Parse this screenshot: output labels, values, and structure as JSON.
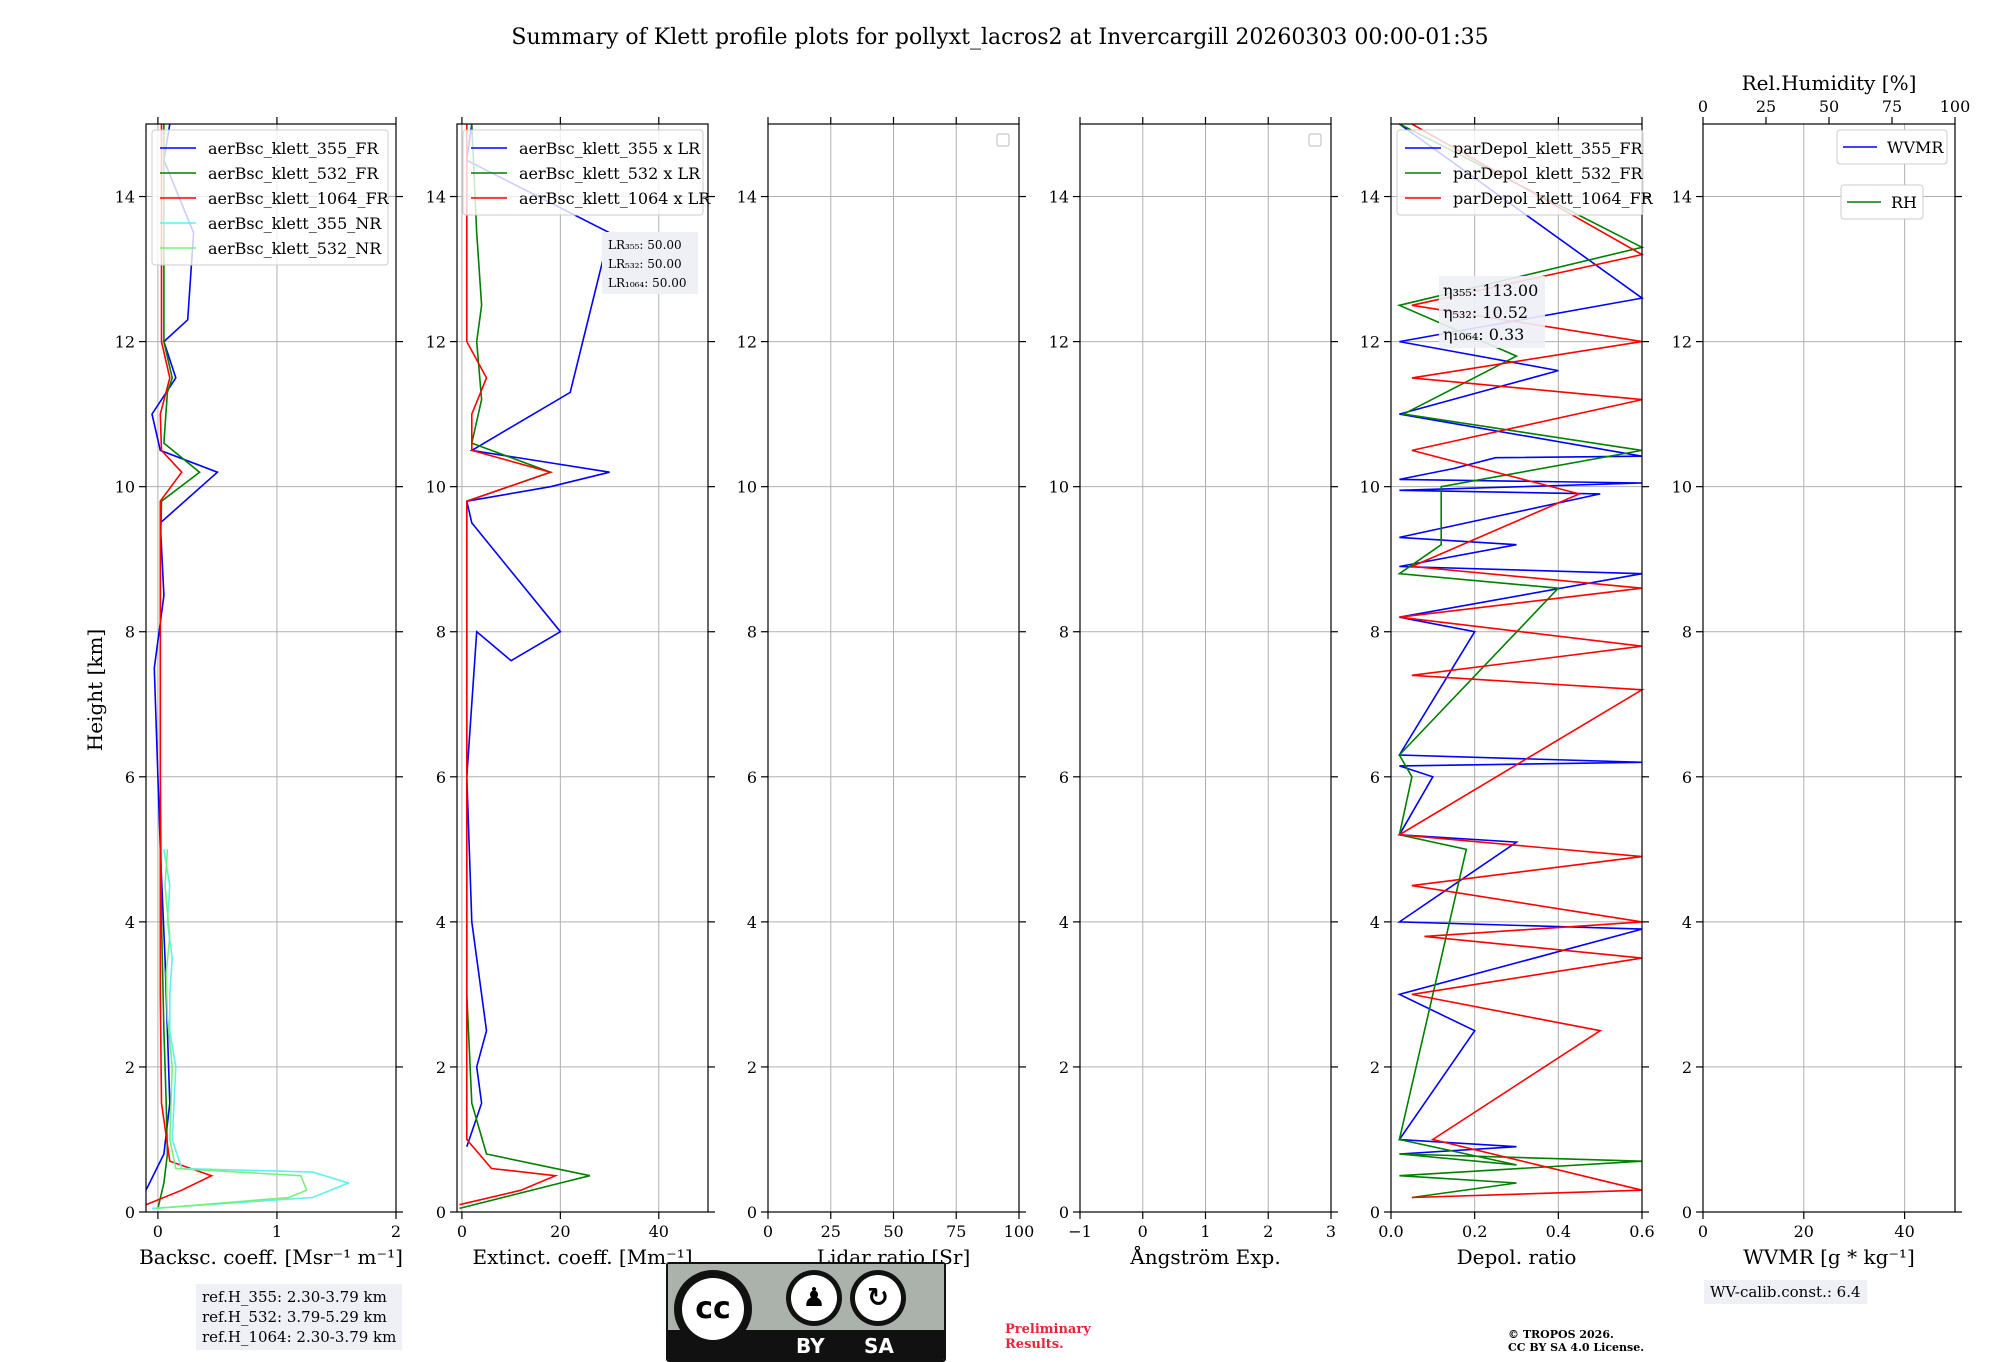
{
  "title": "Summary of Klett profile plots for pollyxt_lacros2 at Invercargill 20260303 00:00-01:35",
  "ylabel": "Height [km]",
  "colors": {
    "c355": "#0000ff",
    "c532": "#008000",
    "c1064": "#ff0000",
    "c355nr": "#5ff0f0",
    "c532nr": "#7af07a",
    "grid": "#b0b0b0"
  },
  "chart_data": [
    {
      "type": "line",
      "id": "bsc",
      "xlabel": "Backsc. coeff. [Msr⁻¹ m⁻¹]",
      "xlim": [
        -0.1,
        2
      ],
      "ylim": [
        0,
        15
      ],
      "xticks": [
        0,
        1,
        2
      ],
      "xtick_labels": [
        "0",
        "1",
        "2"
      ],
      "yticks": [
        0,
        2,
        4,
        6,
        8,
        10,
        12,
        14
      ],
      "ytick_labels": [
        "0",
        "2",
        "4",
        "6",
        "8",
        "10",
        "12",
        "14"
      ],
      "legend": [
        "aerBsc_klett_355_FR",
        "aerBsc_klett_532_FR",
        "aerBsc_klett_1064_FR",
        "aerBsc_klett_355_NR",
        "aerBsc_klett_532_NR"
      ],
      "series": [
        {
          "name": "aerBsc_klett_355_FR",
          "color": "c355",
          "x": [
            -0.1,
            0.05,
            0.1,
            0.08,
            0.06,
            0.02,
            0.0,
            -0.03,
            0.05,
            0.02,
            0.5,
            0.02,
            -0.05,
            0.15,
            0.05,
            0.25,
            0.3,
            0.05,
            0.1
          ],
          "y": [
            0.3,
            0.8,
            1.5,
            2.5,
            3.5,
            5.0,
            6.0,
            7.5,
            8.5,
            9.5,
            10.2,
            10.5,
            11.0,
            11.5,
            12.0,
            12.3,
            13.5,
            14.5,
            15.0
          ]
        },
        {
          "name": "aerBsc_klett_532_FR",
          "color": "c532",
          "x": [
            0.0,
            0.05,
            0.08,
            0.07,
            0.05,
            0.03,
            0.02,
            0.02,
            0.02,
            0.03,
            0.35,
            0.05,
            0.08,
            0.12,
            0.05,
            0.05,
            0.05
          ],
          "y": [
            0.05,
            0.4,
            0.8,
            1.5,
            2.5,
            4.0,
            6.0,
            8.0,
            9.0,
            9.8,
            10.2,
            10.6,
            11.3,
            11.5,
            12.0,
            13.5,
            15.0
          ]
        },
        {
          "name": "aerBsc_klett_1064_FR",
          "color": "c1064",
          "x": [
            -0.1,
            0.2,
            0.45,
            0.1,
            0.03,
            0.02,
            0.02,
            0.02,
            0.02,
            0.02,
            0.2,
            0.03,
            0.02,
            0.1,
            0.03,
            0.03
          ],
          "y": [
            0.1,
            0.3,
            0.5,
            0.7,
            1.5,
            3.0,
            5.0,
            7.0,
            8.0,
            9.8,
            10.2,
            10.5,
            11.0,
            11.5,
            12.0,
            15.0
          ]
        },
        {
          "name": "aerBsc_klett_355_NR",
          "color": "c355nr",
          "x": [
            -0.05,
            1.3,
            1.6,
            1.3,
            0.2,
            0.12,
            0.15,
            0.1,
            0.1,
            0.12,
            0.08,
            0.1,
            0.05
          ],
          "y": [
            0.05,
            0.2,
            0.4,
            0.55,
            0.6,
            1.0,
            2.0,
            2.5,
            3.0,
            3.5,
            4.0,
            4.5,
            5.0
          ]
        },
        {
          "name": "aerBsc_klett_532_NR",
          "color": "c532nr",
          "x": [
            -0.02,
            1.1,
            1.25,
            1.2,
            0.15,
            0.1,
            0.12,
            0.08,
            0.07,
            0.1,
            0.06,
            0.08
          ],
          "y": [
            0.05,
            0.2,
            0.3,
            0.5,
            0.6,
            1.0,
            2.0,
            2.7,
            3.3,
            3.8,
            4.5,
            5.0
          ]
        }
      ],
      "annotation": [
        "ref.H_355: 2.30-3.79 km",
        "ref.H_532: 3.79-5.29 km",
        "ref.H_1064: 2.30-3.79 km"
      ]
    },
    {
      "type": "line",
      "id": "ext",
      "xlabel": "Extinct. coeff. [Mm⁻¹]",
      "xlim": [
        -1,
        50
      ],
      "ylim": [
        0,
        15
      ],
      "xticks": [
        0,
        20,
        40
      ],
      "xtick_labels": [
        "0",
        "20",
        "40"
      ],
      "yticks": [
        0,
        2,
        4,
        6,
        8,
        10,
        12,
        14
      ],
      "ytick_labels": [
        "0",
        "2",
        "4",
        "6",
        "8",
        "10",
        "12",
        "14"
      ],
      "legend": [
        "aerBsc_klett_355 x LR",
        "aerBsc_klett_532 x LR",
        "aerBsc_klett_1064 x LR"
      ],
      "lr_labels": [
        "LR₃₅₅: 50.00",
        "LR₅₃₂: 50.00",
        "LR₁₀₆₄: 50.00"
      ],
      "series": [
        {
          "name": "aerBsc_klett_355 x LR",
          "color": "c355",
          "x": [
            1,
            4,
            3,
            5,
            4,
            2,
            1,
            3,
            10,
            20,
            2,
            1,
            18,
            30,
            2,
            22,
            30,
            1,
            2
          ],
          "y": [
            0.9,
            1.5,
            2.0,
            2.5,
            3.0,
            4.0,
            6.0,
            8.0,
            7.6,
            8.0,
            9.5,
            9.8,
            10.0,
            10.2,
            10.5,
            11.3,
            13.5,
            14.5,
            15.0
          ]
        },
        {
          "name": "aerBsc_klett_532 x LR",
          "color": "c532",
          "x": [
            -0.5,
            20,
            26,
            5,
            2,
            1,
            1,
            1,
            1,
            1,
            18,
            2,
            4,
            3,
            4,
            3,
            2
          ],
          "y": [
            0.05,
            0.4,
            0.5,
            0.8,
            1.5,
            3.0,
            6.0,
            8.0,
            9.0,
            9.8,
            10.2,
            10.6,
            11.2,
            12.0,
            12.5,
            13.5,
            15.0
          ]
        },
        {
          "name": "aerBsc_klett_1064 x LR",
          "color": "c1064",
          "x": [
            -0.5,
            12,
            19,
            6,
            1,
            1,
            1,
            1,
            1,
            1,
            18,
            2,
            2,
            5,
            1,
            1
          ],
          "y": [
            0.1,
            0.3,
            0.5,
            0.6,
            1.0,
            3.0,
            5.0,
            7.0,
            8.0,
            9.8,
            10.2,
            10.5,
            11.0,
            11.5,
            12.0,
            15.0
          ]
        }
      ]
    },
    {
      "type": "line",
      "id": "lr",
      "xlabel": "Lidar ratio [Sr]",
      "xlim": [
        0,
        100
      ],
      "ylim": [
        0,
        15
      ],
      "xticks": [
        0,
        25,
        50,
        75,
        100
      ],
      "xtick_labels": [
        "0",
        "25",
        "50",
        "75",
        "100"
      ],
      "yticks": [
        0,
        2,
        4,
        6,
        8,
        10,
        12,
        14
      ],
      "ytick_labels": [
        "0",
        "2",
        "4",
        "6",
        "8",
        "10",
        "12",
        "14"
      ],
      "series": []
    },
    {
      "type": "line",
      "id": "ang",
      "xlabel": "Ångström Exp.",
      "xlim": [
        -1,
        3
      ],
      "ylim": [
        0,
        15
      ],
      "xticks": [
        -1,
        0,
        1,
        2,
        3
      ],
      "xtick_labels": [
        "−1",
        "0",
        "1",
        "2",
        "3"
      ],
      "yticks": [
        0,
        2,
        4,
        6,
        8,
        10,
        12,
        14
      ],
      "ytick_labels": [
        "0",
        "2",
        "4",
        "6",
        "8",
        "10",
        "12",
        "14"
      ],
      "series": []
    },
    {
      "type": "line",
      "id": "dep",
      "xlabel": "Depol. ratio",
      "xlim": [
        0,
        0.6
      ],
      "ylim": [
        0,
        15
      ],
      "xticks": [
        0,
        0.2,
        0.4,
        0.6
      ],
      "xtick_labels": [
        "0.0",
        "0.2",
        "0.4",
        "0.6"
      ],
      "yticks": [
        0,
        2,
        4,
        6,
        8,
        10,
        12,
        14
      ],
      "ytick_labels": [
        "0",
        "2",
        "4",
        "6",
        "8",
        "10",
        "12",
        "14"
      ],
      "legend": [
        "parDepol_klett_355_FR",
        "parDepol_klett_532_FR",
        "parDepol_klett_1064_FR"
      ],
      "eta_labels": [
        "η₃₅₅: 113.00",
        "η₅₃₂: 10.52",
        "η₁₀₆₄: 0.33"
      ],
      "series": [
        {
          "name": "parDepol_klett_355_FR",
          "color": "c355",
          "x": [
            0.02,
            0.3,
            0.02,
            0.2,
            0.02,
            0.6,
            0.02,
            0.3,
            0.02,
            0.1,
            0.02,
            0.6,
            0.02,
            0.2,
            0.02,
            0.6,
            0.02,
            0.3,
            0.02,
            0.5,
            0.02,
            0.6,
            0.02,
            0.15,
            0.25,
            0.6,
            0.02,
            0.4,
            0.02,
            0.6,
            0.02
          ],
          "y": [
            0.8,
            0.9,
            1.0,
            2.5,
            3.0,
            3.9,
            4.0,
            5.1,
            5.2,
            6.0,
            6.15,
            6.2,
            6.3,
            8.0,
            8.2,
            8.8,
            8.9,
            9.2,
            9.3,
            9.9,
            9.95,
            10.05,
            10.1,
            10.25,
            10.4,
            10.42,
            11.0,
            11.6,
            12.0,
            12.6,
            15.0
          ]
        },
        {
          "name": "parDepol_klett_532_FR",
          "color": "c532",
          "x": [
            0.05,
            0.3,
            0.02,
            0.6,
            0.02,
            0.3,
            0.02,
            0.18,
            0.02,
            0.05,
            0.02,
            0.4,
            0.02,
            0.12,
            0.12,
            0.6,
            0.03,
            0.3,
            0.02,
            0.6,
            0.02
          ],
          "y": [
            0.2,
            0.4,
            0.5,
            0.7,
            0.8,
            0.65,
            1.0,
            5.0,
            5.2,
            6.0,
            6.3,
            8.6,
            8.8,
            9.2,
            10.0,
            10.5,
            11.0,
            11.8,
            12.5,
            13.3,
            15.0
          ]
        },
        {
          "name": "parDepol_klett_1064_FR",
          "color": "c1064",
          "x": [
            0.05,
            0.6,
            0.1,
            0.5,
            0.05,
            0.6,
            0.08,
            0.6,
            0.05,
            0.6,
            0.02,
            0.6,
            0.05,
            0.6,
            0.02,
            0.6,
            0.05,
            0.45,
            0.05,
            0.6,
            0.05,
            0.6,
            0.05,
            0.6,
            0.05
          ],
          "y": [
            0.2,
            0.3,
            1.0,
            2.5,
            3.0,
            3.5,
            3.8,
            4.0,
            4.5,
            4.9,
            5.2,
            7.2,
            7.4,
            7.8,
            8.2,
            8.6,
            8.9,
            9.9,
            10.5,
            11.2,
            11.5,
            12.0,
            12.5,
            13.2,
            15.0
          ]
        }
      ]
    },
    {
      "type": "line",
      "id": "wv",
      "xlabel": "WVMR [g * kg⁻¹]",
      "top_xlabel": "Rel.Humidity [%]",
      "xlim": [
        0,
        50
      ],
      "ylim": [
        0,
        15
      ],
      "xticks": [
        0,
        20,
        40
      ],
      "xtick_labels": [
        "0",
        "20",
        "40"
      ],
      "top_xlim": [
        0,
        100
      ],
      "top_xticks": [
        0,
        25,
        50,
        75,
        100
      ],
      "top_xtick_labels": [
        "0",
        "25",
        "50",
        "75",
        "100"
      ],
      "yticks": [
        0,
        2,
        4,
        6,
        8,
        10,
        12,
        14
      ],
      "ytick_labels": [
        "0",
        "2",
        "4",
        "6",
        "8",
        "10",
        "12",
        "14"
      ],
      "legend": [
        "WVMR",
        "RH"
      ],
      "series": [],
      "annotation": "WV-calib.const.: 6.4"
    }
  ],
  "footer": {
    "preliminary": [
      "Preliminary",
      "Results."
    ],
    "copyright": [
      "© TROPOS 2026.",
      "CC BY SA 4.0 License."
    ],
    "license_badge": {
      "cc": "cc",
      "by": "BY",
      "sa": "SA"
    }
  }
}
